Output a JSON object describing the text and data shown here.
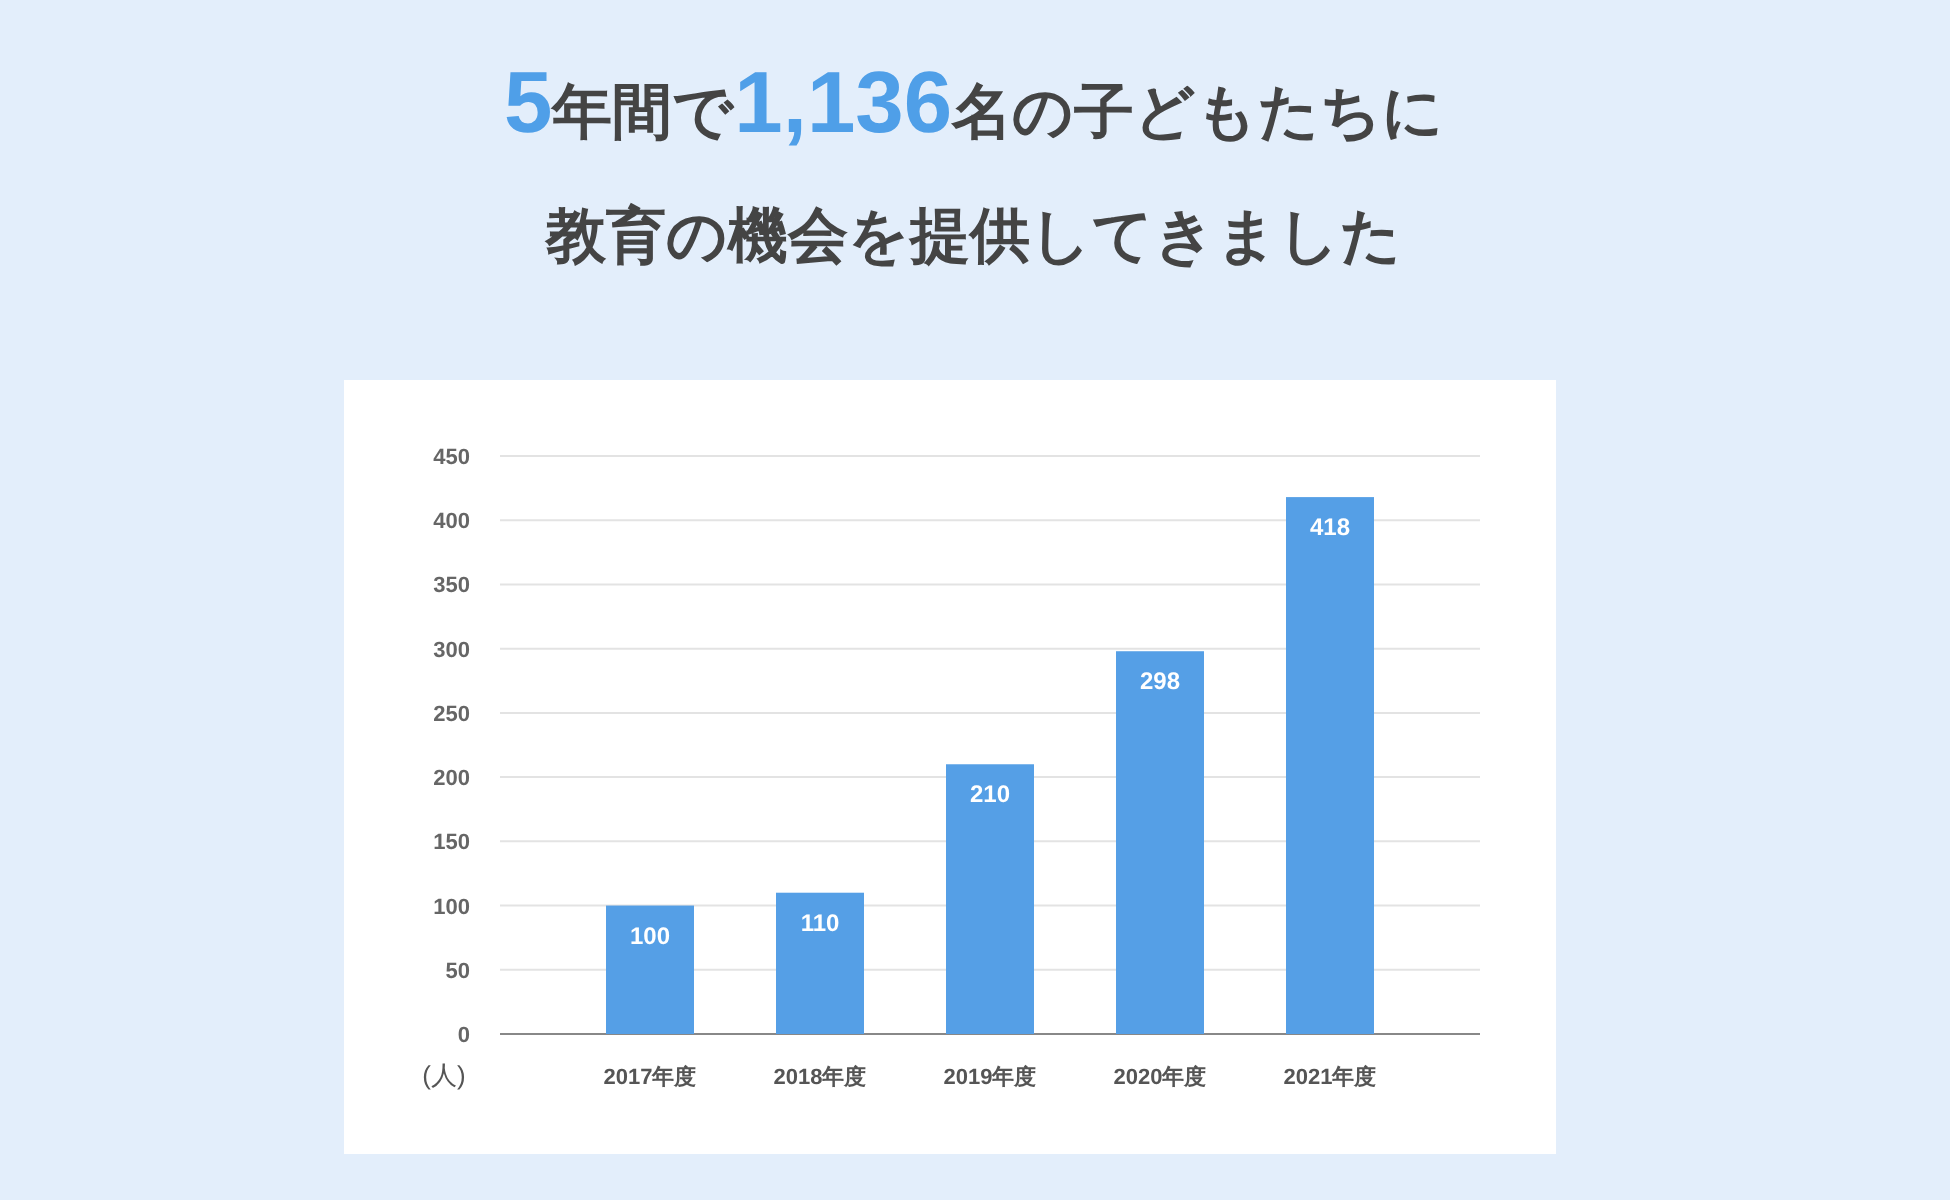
{
  "chart_data": {
    "type": "bar",
    "title": "5年間で1,136名の子どもたちに",
    "subtitle": "教育の機会を提供してきました",
    "ylabel": "(人)",
    "categories": [
      "2017年度",
      "2018年度",
      "2019年度",
      "2020年度",
      "2021年度"
    ],
    "values": [
      100,
      110,
      210,
      298,
      418
    ],
    "color": "#559fe6",
    "ylim": [
      0,
      450
    ],
    "yticks": [
      0,
      50,
      100,
      150,
      200,
      250,
      300,
      350,
      400,
      450
    ],
    "grid": "y",
    "data_labels": true
  }
}
